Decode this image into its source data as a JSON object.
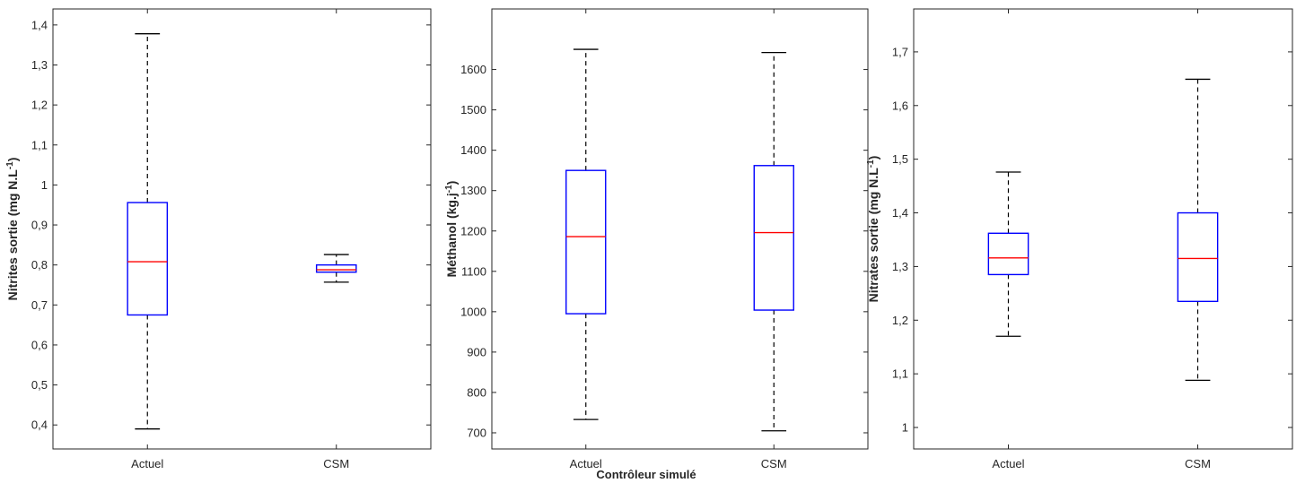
{
  "figure": {
    "xlabel": "Contrôleur simulé"
  },
  "colors": {
    "box": "#0000ff",
    "median": "#ff0000",
    "whisker": "#000000",
    "axis": "#262626"
  },
  "chart_data": [
    {
      "type": "boxplot",
      "ylabel_main": "Nitrites sortie (mg N.L",
      "ylabel_sup": "-1",
      "ylabel_end": ")",
      "categories": [
        "Actuel",
        "CSM"
      ],
      "ylim": [
        0.34,
        1.44
      ],
      "yticks": [
        0.4,
        0.5,
        0.6,
        0.7,
        0.8,
        0.9,
        1.0,
        1.1,
        1.2,
        1.3,
        1.4
      ],
      "ytick_labels": [
        "0,4",
        "0,5",
        "0,6",
        "0,7",
        "0,8",
        "0,9",
        "1",
        "1,1",
        "1,2",
        "1,3",
        "1,4"
      ],
      "boxes": [
        {
          "min": 0.39,
          "q1": 0.675,
          "median": 0.808,
          "q3": 0.956,
          "max": 1.378
        },
        {
          "min": 0.757,
          "q1": 0.782,
          "median": 0.788,
          "q3": 0.8,
          "max": 0.826
        }
      ]
    },
    {
      "type": "boxplot",
      "ylabel_main": "Méthanol (kg.j",
      "ylabel_sup": "-1",
      "ylabel_end": ")",
      "categories": [
        "Actuel",
        "CSM"
      ],
      "ylim": [
        660,
        1750
      ],
      "yticks": [
        700,
        800,
        900,
        1000,
        1100,
        1200,
        1300,
        1400,
        1500,
        1600
      ],
      "ytick_labels": [
        "700",
        "800",
        "900",
        "1000",
        "1100",
        "1200",
        "1300",
        "1400",
        "1500",
        "1600"
      ],
      "boxes": [
        {
          "min": 733,
          "q1": 995,
          "median": 1186,
          "q3": 1350,
          "max": 1650
        },
        {
          "min": 705,
          "q1": 1004,
          "median": 1196,
          "q3": 1362,
          "max": 1642
        }
      ]
    },
    {
      "type": "boxplot",
      "ylabel_main": "Nitrates sortie (mg N.L",
      "ylabel_sup": "-1",
      "ylabel_end": ")",
      "categories": [
        "Actuel",
        "CSM"
      ],
      "ylim": [
        0.96,
        1.78
      ],
      "yticks": [
        1.0,
        1.1,
        1.2,
        1.3,
        1.4,
        1.5,
        1.6,
        1.7
      ],
      "ytick_labels": [
        "1",
        "1,1",
        "1,2",
        "1,3",
        "1,4",
        "1,5",
        "1,6",
        "1,7"
      ],
      "boxes": [
        {
          "min": 1.17,
          "q1": 1.285,
          "median": 1.316,
          "q3": 1.362,
          "max": 1.476
        },
        {
          "min": 1.088,
          "q1": 1.235,
          "median": 1.315,
          "q3": 1.4,
          "max": 1.649
        }
      ]
    }
  ]
}
